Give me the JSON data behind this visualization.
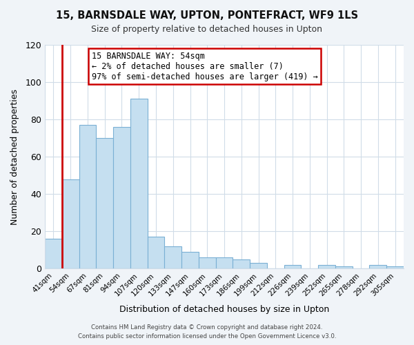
{
  "title": "15, BARNSDALE WAY, UPTON, PONTEFRACT, WF9 1LS",
  "subtitle": "Size of property relative to detached houses in Upton",
  "xlabel": "Distribution of detached houses by size in Upton",
  "ylabel": "Number of detached properties",
  "bin_labels": [
    "41sqm",
    "54sqm",
    "67sqm",
    "81sqm",
    "94sqm",
    "107sqm",
    "120sqm",
    "133sqm",
    "147sqm",
    "160sqm",
    "173sqm",
    "186sqm",
    "199sqm",
    "212sqm",
    "226sqm",
    "239sqm",
    "252sqm",
    "265sqm",
    "278sqm",
    "292sqm",
    "305sqm"
  ],
  "bar_heights": [
    16,
    48,
    77,
    70,
    76,
    91,
    17,
    12,
    9,
    6,
    6,
    5,
    3,
    0,
    2,
    0,
    2,
    1,
    0,
    2,
    1
  ],
  "highlight_bin_index": 1,
  "highlight_color": "#cc0000",
  "normal_bar_color": "#c5dff0",
  "normal_edge_color": "#7ab0d4",
  "ylim": [
    0,
    120
  ],
  "yticks": [
    0,
    20,
    40,
    60,
    80,
    100,
    120
  ],
  "annotation_line1": "15 BARNSDALE WAY: 54sqm",
  "annotation_line2": "← 2% of detached houses are smaller (7)",
  "annotation_line3": "97% of semi-detached houses are larger (419) →",
  "footer_line1": "Contains HM Land Registry data © Crown copyright and database right 2024.",
  "footer_line2": "Contains public sector information licensed under the Open Government Licence v3.0.",
  "plot_bg_color": "#ffffff",
  "fig_bg_color": "#f0f4f8",
  "grid_color": "#d0dce8"
}
